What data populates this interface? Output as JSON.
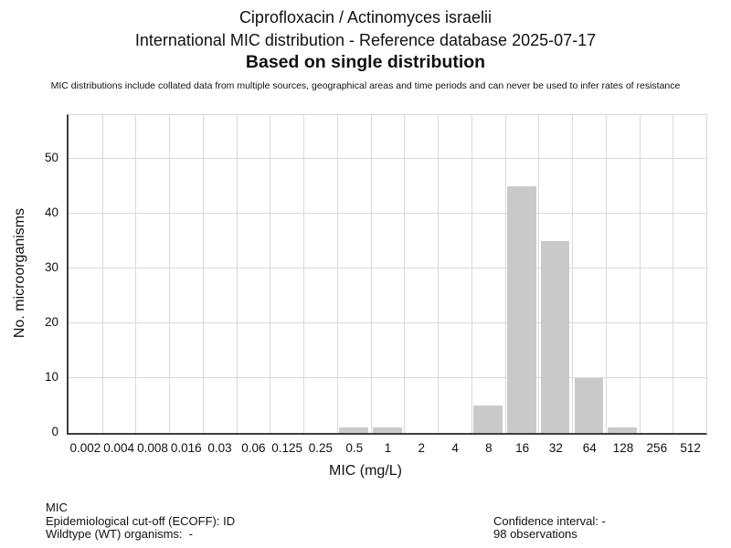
{
  "header": {
    "title_line1": "Ciprofloxacin / Actinomyces israelii",
    "title_line2": "International MIC distribution - Reference database 2025-07-17",
    "title_line3": "Based on single distribution",
    "disclaimer": "MIC distributions include collated data from multiple sources, geographical areas and time periods and can never be used to infer rates of resistance"
  },
  "chart_data": {
    "type": "bar",
    "categories": [
      "0.002",
      "0.004",
      "0.008",
      "0.016",
      "0.03",
      "0.06",
      "0.125",
      "0.25",
      "0.5",
      "1",
      "2",
      "4",
      "8",
      "16",
      "32",
      "64",
      "128",
      "256",
      "512"
    ],
    "values": [
      0,
      0,
      0,
      0,
      0,
      0,
      0,
      0,
      1,
      1,
      0,
      0,
      5,
      45,
      35,
      10,
      1,
      0,
      0
    ],
    "xlabel": "MIC (mg/L)",
    "ylabel": "No. microorganisms",
    "ylim": [
      0,
      58
    ],
    "yticks": [
      0,
      10,
      20,
      30,
      40,
      50
    ],
    "grid": true,
    "legend": "none",
    "bar_color": "#c9c9c9",
    "gridline_color": "#d9d9d9",
    "axis_color": "#3f3f3f"
  },
  "footer": {
    "left": [
      "MIC",
      "Epidemiological cut-off (ECOFF): ID",
      "Wildtype (WT) organisms:  -"
    ],
    "right": [
      "Confidence interval: -",
      "98 observations"
    ]
  }
}
